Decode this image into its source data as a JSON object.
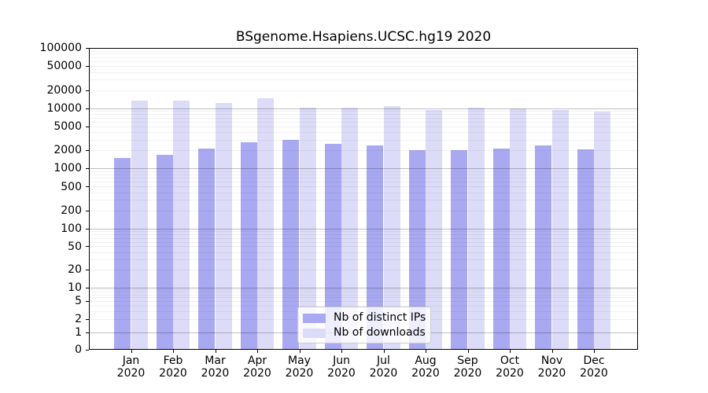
{
  "chart_data": {
    "type": "bar",
    "title": "BSgenome.Hsapiens.UCSC.hg19 2020",
    "categories": [
      "Jan 2020",
      "Feb 2020",
      "Mar 2020",
      "Apr 2020",
      "May 2020",
      "Jun 2020",
      "Jul 2020",
      "Aug 2020",
      "Sep 2020",
      "Oct 2020",
      "Nov 2020",
      "Dec 2020"
    ],
    "series": [
      {
        "name": "Nb of distinct IPs",
        "color": "#a9a9f2",
        "values": [
          1520,
          1680,
          2130,
          2690,
          2960,
          2600,
          2440,
          2040,
          2010,
          2170,
          2400,
          2070
        ]
      },
      {
        "name": "Nb of downloads",
        "color": "#dcdcf8",
        "values": [
          13400,
          13400,
          12400,
          14800,
          10100,
          10100,
          11000,
          9300,
          10300,
          9900,
          9400,
          8900
        ]
      }
    ],
    "yscale": "symlog",
    "ylim": [
      0,
      100000
    ],
    "xlabel": "",
    "ylabel": "",
    "grid": true,
    "legend_position": "lower center inside"
  },
  "y_axis": {
    "ticks": [
      {
        "label": "100000",
        "value": 100000
      },
      {
        "label": "50000",
        "value": 50000
      },
      {
        "label": "20000",
        "value": 20000
      },
      {
        "label": "10000",
        "value": 10000
      },
      {
        "label": "5000",
        "value": 5000
      },
      {
        "label": "2000",
        "value": 2000
      },
      {
        "label": "1000",
        "value": 1000
      },
      {
        "label": "500",
        "value": 500
      },
      {
        "label": "200",
        "value": 200
      },
      {
        "label": "100",
        "value": 100
      },
      {
        "label": "50",
        "value": 50
      },
      {
        "label": "20",
        "value": 20
      },
      {
        "label": "10",
        "value": 10
      },
      {
        "label": "5",
        "value": 5
      },
      {
        "label": "2",
        "value": 2
      },
      {
        "label": "1",
        "value": 1
      },
      {
        "label": "0",
        "value": 0
      }
    ]
  },
  "colors": {
    "ips_bar": "#a9a9f2",
    "downloads_bar": "#dcdcf8",
    "axis": "#000000",
    "grid_major": "rgba(0,0,0,0.25)",
    "grid_minor": "rgba(0,0,0,0.055)",
    "legend_border": "#cccccc"
  }
}
